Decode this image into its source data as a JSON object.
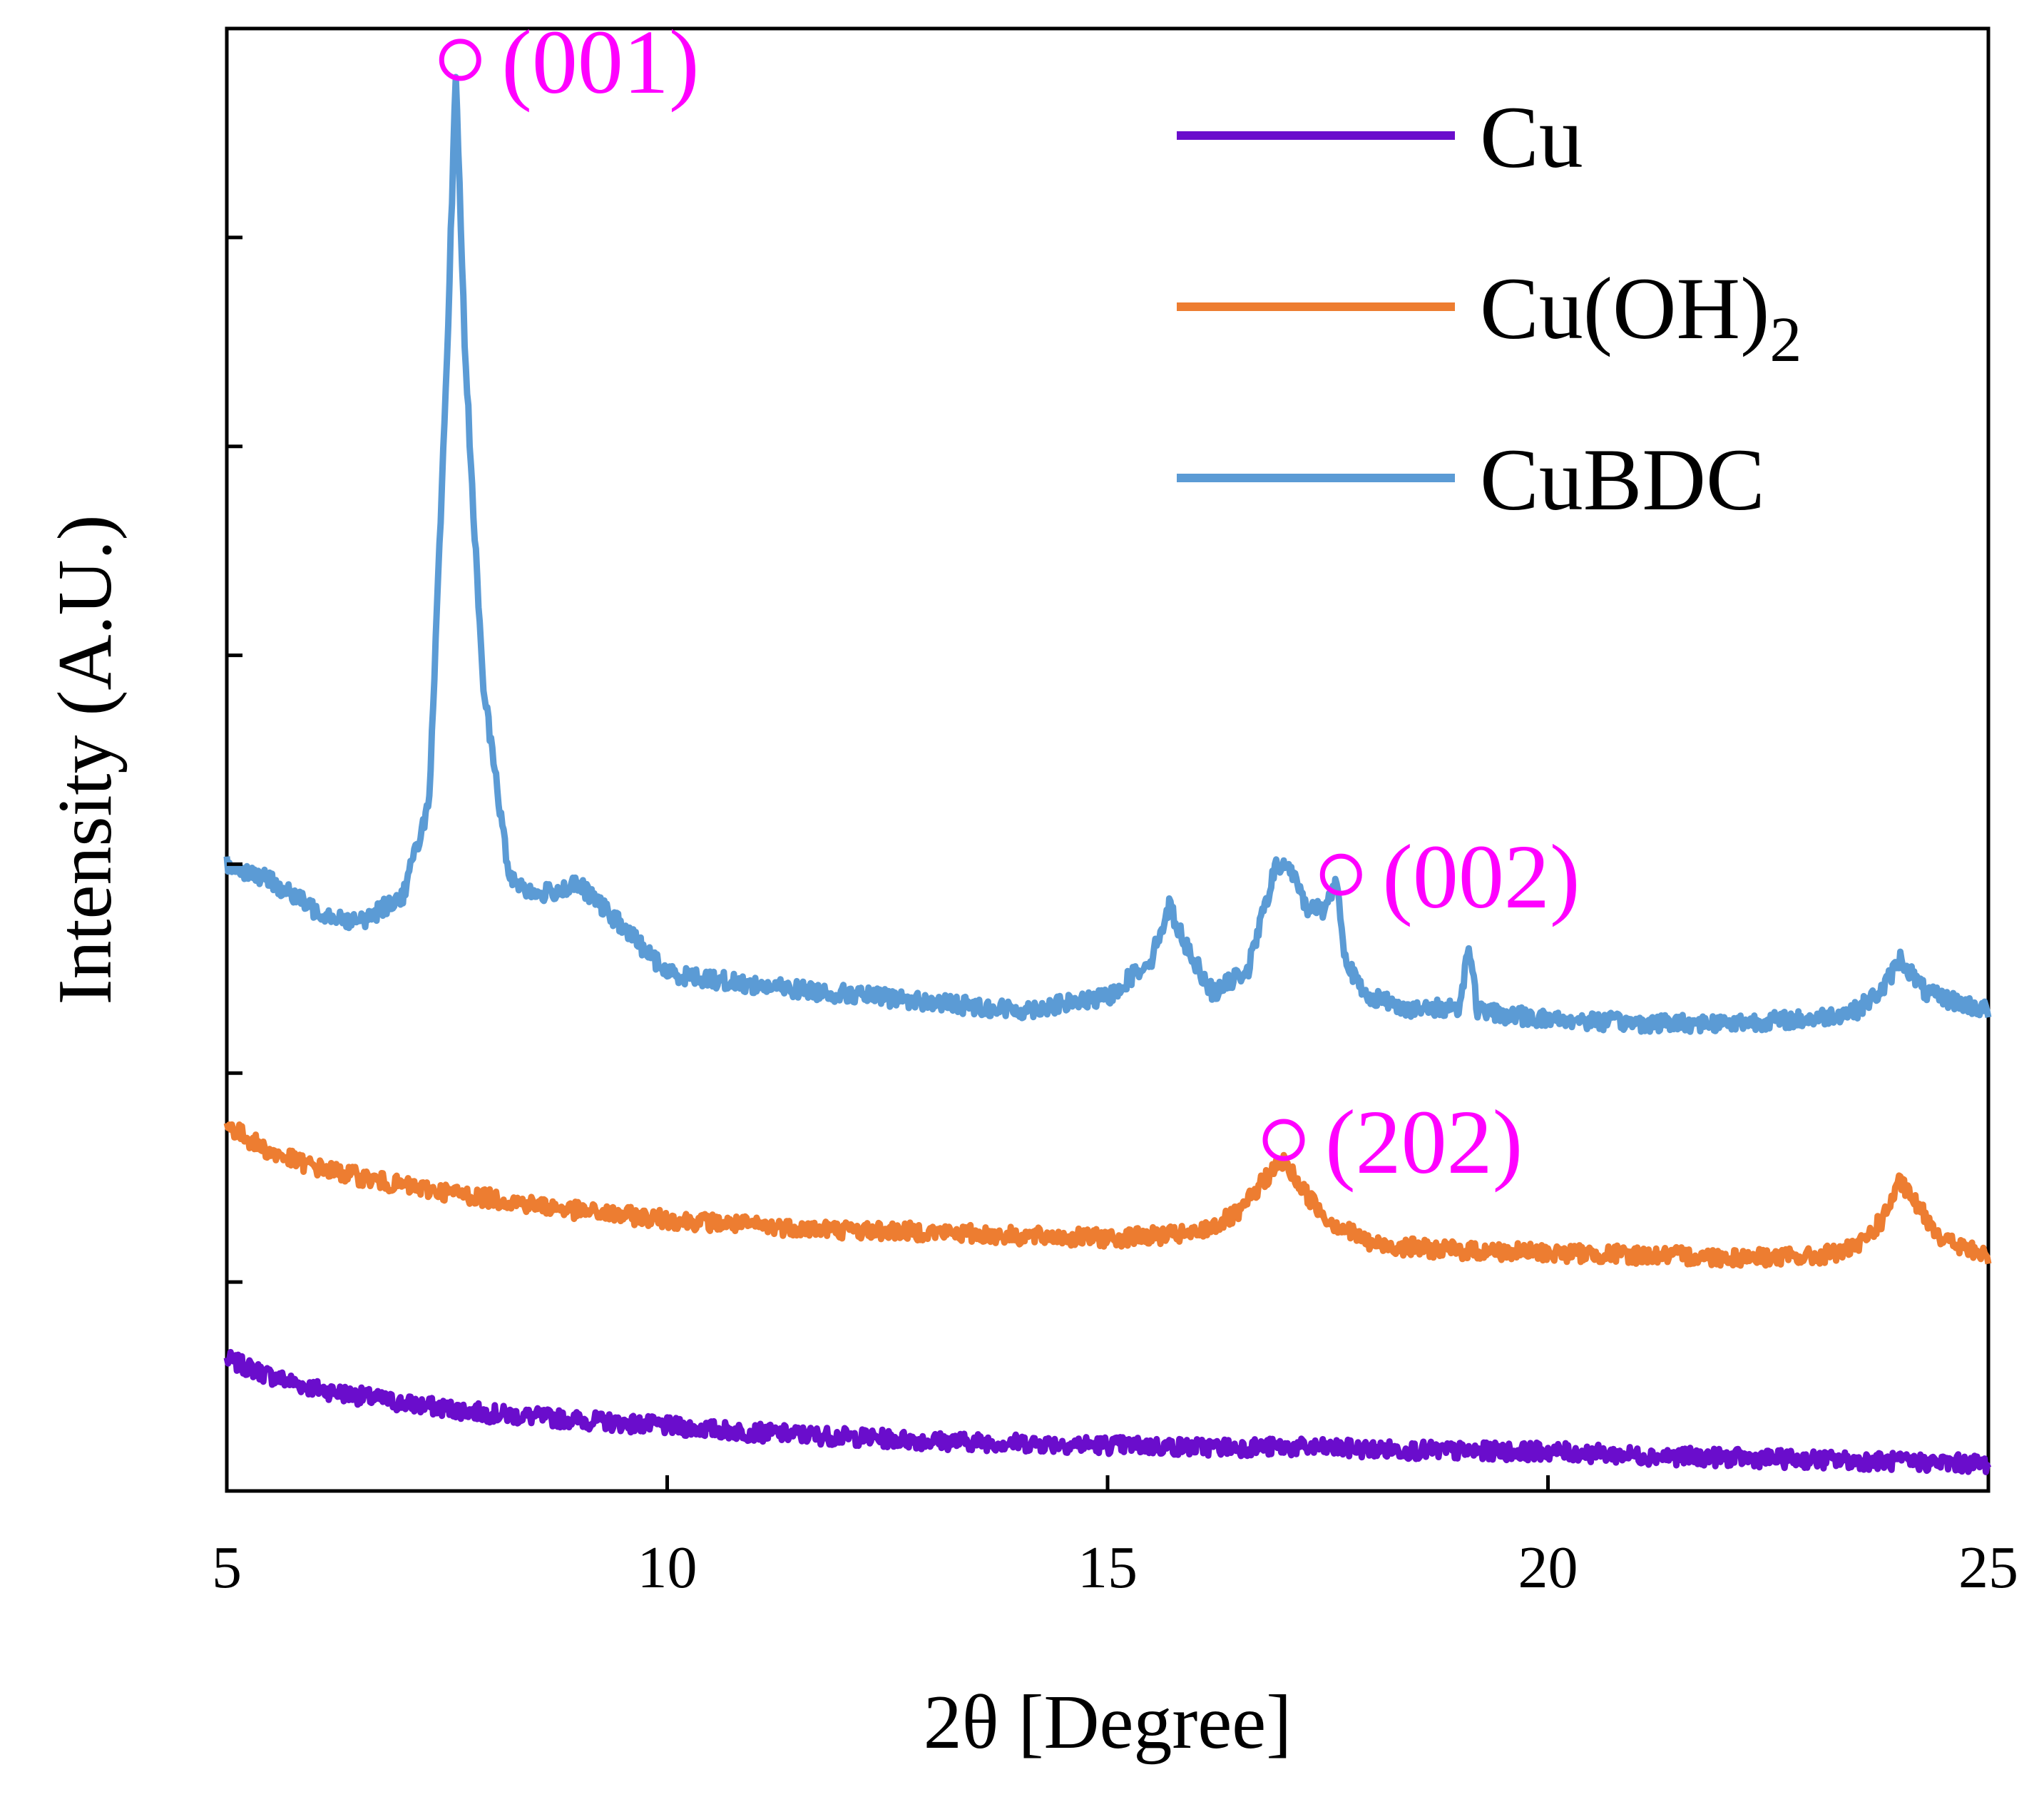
{
  "chart_data": {
    "type": "line",
    "title": "",
    "xlabel": "2θ [Degree]",
    "ylabel": "Intensity (A.U.)",
    "xlim": [
      5,
      25
    ],
    "ylim": [
      0,
      7
    ],
    "x_ticks": [
      5,
      10,
      15,
      20,
      25
    ],
    "y_ticks": [
      1,
      2,
      3,
      4,
      5,
      6,
      7
    ],
    "y_tick_labels_shown": false,
    "grid": false,
    "legend_position": "top-right",
    "annotation_color": "#FF00FF",
    "series": [
      {
        "name": "Cu",
        "color": "#6A0DCC",
        "x": [
          5.0,
          5.5,
          6.0,
          7.0,
          8.0,
          9.0,
          10.0,
          11.0,
          12.0,
          13.0,
          14.0,
          15.0,
          16.0,
          17.0,
          18.0,
          19.0,
          20.0,
          21.0,
          22.0,
          23.0,
          24.0,
          25.0
        ],
        "y": [
          0.63,
          0.55,
          0.49,
          0.42,
          0.37,
          0.34,
          0.31,
          0.28,
          0.26,
          0.24,
          0.23,
          0.22,
          0.21,
          0.21,
          0.2,
          0.19,
          0.19,
          0.17,
          0.16,
          0.15,
          0.14,
          0.13
        ]
      },
      {
        "name": "Cu(OH)2",
        "color": "#ED7D31",
        "x": [
          5.0,
          5.5,
          6.0,
          7.0,
          8.0,
          9.0,
          10.0,
          11.0,
          12.0,
          13.0,
          14.0,
          15.0,
          16.0,
          16.5,
          16.8,
          17.0,
          17.2,
          17.5,
          18.0,
          19.0,
          20.0,
          21.0,
          22.0,
          23.0,
          23.5,
          23.8,
          24.0,
          24.2,
          24.5,
          25.0
        ],
        "y": [
          1.75,
          1.62,
          1.55,
          1.46,
          1.4,
          1.34,
          1.3,
          1.27,
          1.25,
          1.24,
          1.22,
          1.21,
          1.23,
          1.33,
          1.5,
          1.58,
          1.45,
          1.3,
          1.18,
          1.15,
          1.14,
          1.13,
          1.12,
          1.12,
          1.16,
          1.3,
          1.48,
          1.36,
          1.2,
          1.12
        ]
      },
      {
        "name": "CuBDC",
        "color": "#5B9BD5",
        "x": [
          5.0,
          5.5,
          6.0,
          6.5,
          7.0,
          7.3,
          7.5,
          7.6,
          7.7,
          7.9,
          8.2,
          8.5,
          9.0,
          9.5,
          10.0,
          11.0,
          12.0,
          13.0,
          14.0,
          15.0,
          15.5,
          15.7,
          15.9,
          16.2,
          16.6,
          16.9,
          17.05,
          17.25,
          17.45,
          17.6,
          17.7,
          17.9,
          18.5,
          19.0,
          19.1,
          19.2,
          19.5,
          20.0,
          21.0,
          22.0,
          23.0,
          23.5,
          23.8,
          24.0,
          24.3,
          25.0
        ],
        "y": [
          3.0,
          2.92,
          2.78,
          2.72,
          2.85,
          3.3,
          5.4,
          6.8,
          5.5,
          3.9,
          2.95,
          2.85,
          2.9,
          2.7,
          2.48,
          2.42,
          2.38,
          2.34,
          2.3,
          2.36,
          2.55,
          2.8,
          2.6,
          2.38,
          2.5,
          2.98,
          3.0,
          2.8,
          2.78,
          2.92,
          2.55,
          2.38,
          2.3,
          2.32,
          2.62,
          2.3,
          2.28,
          2.26,
          2.24,
          2.24,
          2.26,
          2.3,
          2.4,
          2.55,
          2.38,
          2.3
        ]
      }
    ],
    "annotations": [
      {
        "label": "(001)",
        "x": 7.65,
        "y": 6.85
      },
      {
        "label": "(002)",
        "x": 17.65,
        "y": 2.95
      },
      {
        "label": "(202)",
        "x": 17.0,
        "y": 1.68
      }
    ]
  }
}
